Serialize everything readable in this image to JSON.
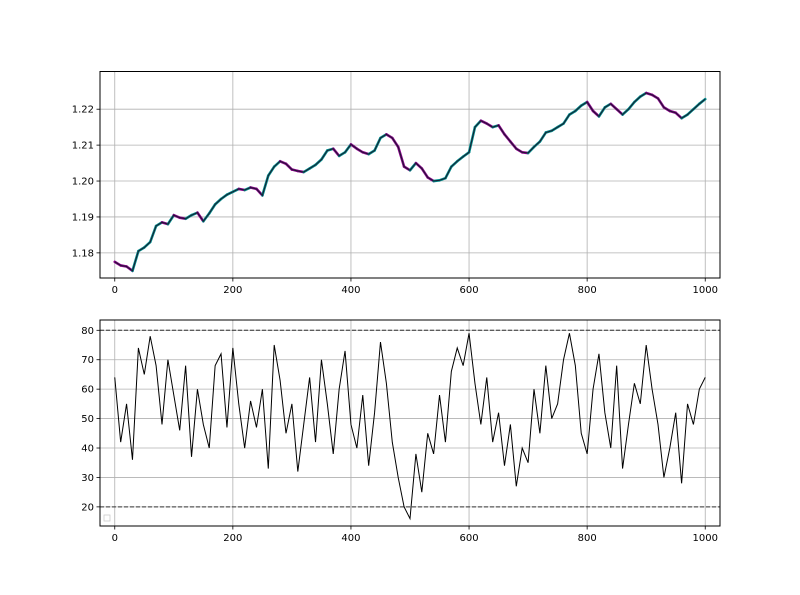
{
  "chart_data": [
    {
      "type": "line",
      "title": "",
      "xlabel": "",
      "ylabel": "",
      "xlim": [
        -25,
        1025
      ],
      "ylim": [
        1.173,
        1.2305
      ],
      "xticks": [
        0,
        200,
        400,
        600,
        800,
        1000
      ],
      "xtick_labels": [
        "0",
        "200",
        "400",
        "600",
        "800",
        "1000"
      ],
      "yticks": [
        1.18,
        1.19,
        1.2,
        1.21,
        1.22
      ],
      "ytick_labels": [
        "1.18",
        "1.19",
        "1.20",
        "1.21",
        "1.22"
      ],
      "grid": true,
      "colors": {
        "price": "#1a1a2e",
        "up": "#008b8b",
        "down": "#8b008b"
      },
      "series": [
        {
          "x": [
            0,
            10,
            20,
            30,
            40,
            50,
            60,
            70,
            80,
            90,
            100,
            110,
            120,
            130,
            140,
            150,
            160,
            170,
            180,
            190,
            200,
            210,
            220,
            230,
            240,
            250,
            260,
            270,
            280,
            290,
            300,
            310,
            320,
            330,
            340,
            350,
            360,
            370,
            380,
            390,
            400,
            410,
            420,
            430,
            440,
            450,
            460,
            470,
            480,
            490,
            500,
            510,
            520,
            530,
            540,
            550,
            560,
            570,
            580,
            590,
            600,
            610,
            620,
            630,
            640,
            650,
            660,
            670,
            680,
            690,
            700,
            710,
            720,
            730,
            740,
            750,
            760,
            770,
            780,
            790,
            800,
            810,
            820,
            830,
            840,
            850,
            860,
            870,
            880,
            890,
            900,
            910,
            920,
            930,
            940,
            950,
            960,
            970,
            980,
            990,
            1000
          ],
          "values": [
            1.1775,
            1.1765,
            1.1762,
            1.175,
            1.1805,
            1.1815,
            1.183,
            1.1875,
            1.1885,
            1.188,
            1.1905,
            1.1898,
            1.1895,
            1.1905,
            1.1912,
            1.1888,
            1.191,
            1.1935,
            1.195,
            1.1962,
            1.197,
            1.1978,
            1.1975,
            1.1982,
            1.1978,
            1.196,
            1.2015,
            1.204,
            1.2055,
            1.2048,
            1.2032,
            1.2028,
            1.2025,
            1.2035,
            1.2045,
            1.206,
            1.2085,
            1.209,
            1.207,
            1.208,
            1.2102,
            1.209,
            1.208,
            1.2075,
            1.2085,
            1.212,
            1.213,
            1.212,
            1.2095,
            1.204,
            1.203,
            1.205,
            1.2035,
            1.201,
            1.2,
            1.2002,
            1.2008,
            1.204,
            1.2055,
            1.2068,
            1.208,
            1.215,
            1.2168,
            1.216,
            1.215,
            1.2155,
            1.213,
            1.211,
            1.209,
            1.208,
            1.2078,
            1.2095,
            1.211,
            1.2135,
            1.214,
            1.215,
            1.216,
            1.2185,
            1.2195,
            1.221,
            1.222,
            1.2195,
            1.218,
            1.2205,
            1.2215,
            1.22,
            1.2185,
            1.22,
            1.222,
            1.2235,
            1.2245,
            1.224,
            1.223,
            1.2205,
            1.2195,
            1.219,
            1.2175,
            1.2185,
            1.22,
            1.2215,
            1.2228
          ]
        }
      ]
    },
    {
      "type": "line",
      "title": "",
      "xlabel": "",
      "ylabel": "",
      "xlim": [
        -25,
        1025
      ],
      "ylim": [
        13.5,
        83.5
      ],
      "xticks": [
        0,
        200,
        400,
        600,
        800,
        1000
      ],
      "xtick_labels": [
        "0",
        "200",
        "400",
        "600",
        "800",
        "1000"
      ],
      "yticks": [
        20,
        30,
        40,
        50,
        60,
        70,
        80
      ],
      "ytick_labels": [
        "20",
        "30",
        "40",
        "50",
        "60",
        "70",
        "80"
      ],
      "grid": true,
      "reference_lines": [
        80,
        20
      ],
      "colors": {
        "line": "#000000",
        "reference": "#333333"
      },
      "series": [
        {
          "x": [
            0,
            10,
            20,
            30,
            40,
            50,
            60,
            70,
            80,
            90,
            100,
            110,
            120,
            130,
            140,
            150,
            160,
            170,
            180,
            190,
            200,
            210,
            220,
            230,
            240,
            250,
            260,
            270,
            280,
            290,
            300,
            310,
            320,
            330,
            340,
            350,
            360,
            370,
            380,
            390,
            400,
            410,
            420,
            430,
            440,
            450,
            460,
            470,
            480,
            490,
            500,
            510,
            520,
            530,
            540,
            550,
            560,
            570,
            580,
            590,
            600,
            610,
            620,
            630,
            640,
            650,
            660,
            670,
            680,
            690,
            700,
            710,
            720,
            730,
            740,
            750,
            760,
            770,
            780,
            790,
            800,
            810,
            820,
            830,
            840,
            850,
            860,
            870,
            880,
            890,
            900,
            910,
            920,
            930,
            940,
            950,
            960,
            970,
            980,
            990,
            1000
          ],
          "values": [
            64,
            42,
            55,
            36,
            74,
            65,
            78,
            68,
            48,
            70,
            58,
            46,
            68,
            37,
            60,
            48,
            40,
            68,
            72,
            47,
            74,
            55,
            40,
            56,
            47,
            60,
            33,
            75,
            63,
            45,
            55,
            32,
            48,
            64,
            42,
            70,
            55,
            38,
            60,
            73,
            48,
            40,
            58,
            34,
            52,
            76,
            62,
            42,
            30,
            20,
            16,
            38,
            25,
            45,
            38,
            58,
            42,
            66,
            74,
            68,
            79,
            62,
            48,
            64,
            42,
            52,
            34,
            48,
            27,
            40,
            35,
            60,
            45,
            68,
            50,
            55,
            70,
            79,
            68,
            45,
            38,
            60,
            72,
            52,
            40,
            68,
            33,
            48,
            62,
            55,
            75,
            60,
            48,
            30,
            40,
            52,
            28,
            55,
            48,
            60,
            64
          ]
        }
      ]
    }
  ]
}
